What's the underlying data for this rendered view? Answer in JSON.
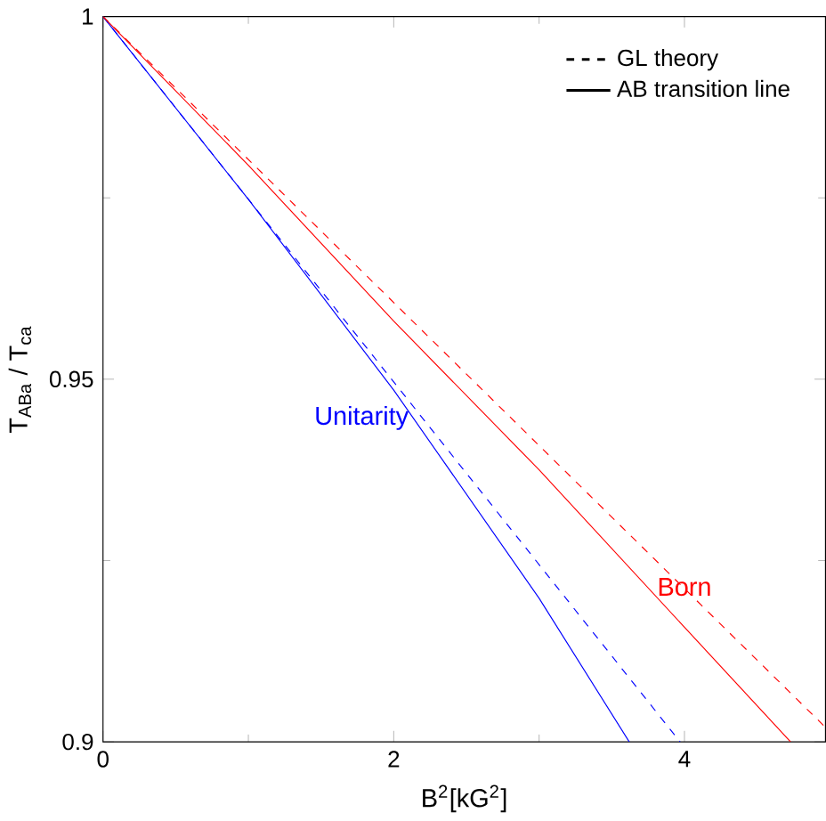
{
  "chart_data": {
    "type": "line",
    "xlabel": "B$^{2}$[kG$^{2}$]",
    "ylabel": "T$_{ABa}$ / T$_{ca}$",
    "xlim": [
      0,
      4.97
    ],
    "ylim": [
      0.9,
      1
    ],
    "xticks": [
      0,
      2,
      4
    ],
    "yticks": [
      0.9,
      0.95,
      1
    ],
    "annotations": [
      "GL theory",
      "AB transition line"
    ],
    "series": [
      {
        "color": "#0000ff",
        "line_style": "dashed",
        "x": [
          0,
          3.97
        ],
        "values": [
          1,
          0.9
        ]
      },
      {
        "name": "Unitarity",
        "color": "#0000ff",
        "line_style": "solid",
        "x": [
          0,
          1,
          2,
          3,
          3.62
        ],
        "values": [
          1,
          0.9748,
          0.9485,
          0.9198,
          0.9
        ]
      },
      {
        "color": "#ff0000",
        "line_style": "dashed",
        "x": [
          0,
          4.97
        ],
        "values": [
          1,
          0.902
        ]
      },
      {
        "name": "Born",
        "color": "#ff0000",
        "line_style": "solid",
        "x": [
          0,
          1,
          2,
          3,
          4,
          4.73
        ],
        "values": [
          1,
          0.9795,
          0.958,
          0.9375,
          0.9158,
          0.9
        ]
      }
    ]
  }
}
